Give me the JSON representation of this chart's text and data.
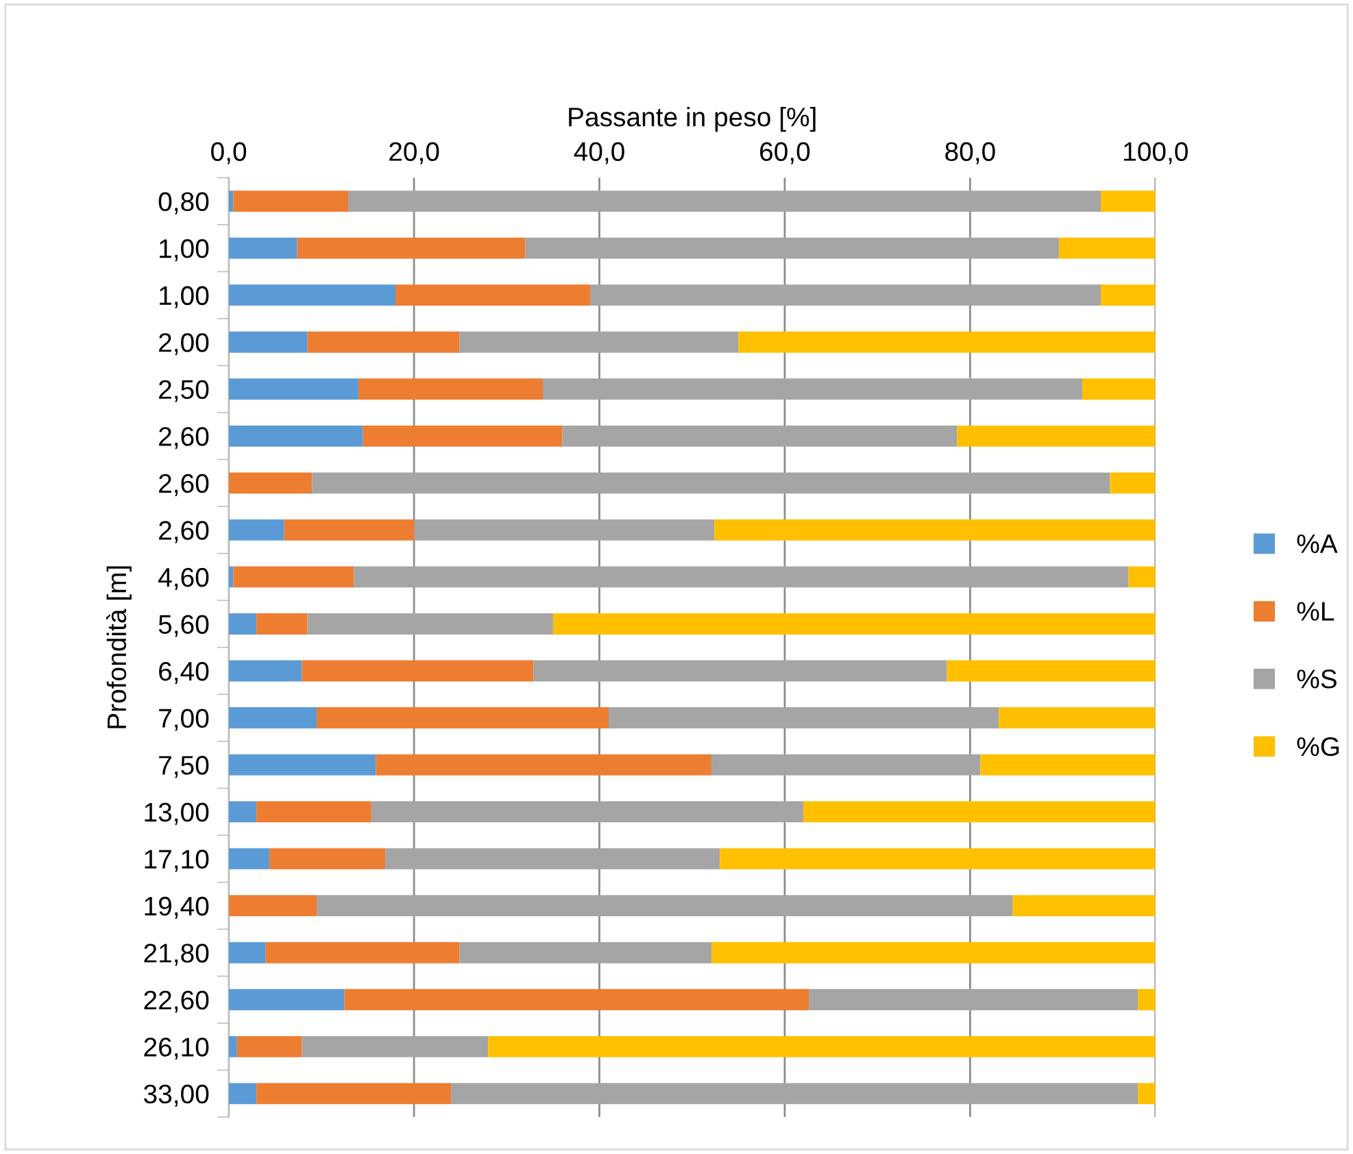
{
  "chart_data": {
    "type": "bar",
    "orientation": "horizontal",
    "stacked": true,
    "xlabel": "Passante in peso [%]",
    "ylabel": "Profondità [m]",
    "categories": [
      "0,80",
      "1,00",
      "1,00",
      "2,00",
      "2,50",
      "2,60",
      "2,60",
      "2,60",
      "4,60",
      "5,60",
      "6,40",
      "7,00",
      "7,50",
      "13,00",
      "17,10",
      "19,40",
      "21,80",
      "22,60",
      "26,10",
      "33,00"
    ],
    "series": [
      {
        "name": "%A",
        "color": "#5b9bd5",
        "values": [
          0.5,
          7.4,
          18.0,
          8.5,
          14.0,
          14.5,
          0,
          6.0,
          0.5,
          3.0,
          7.9,
          9.5,
          15.9,
          3.0,
          4.4,
          0,
          4.0,
          12.5,
          0.9,
          3.0
        ]
      },
      {
        "name": "%L",
        "color": "#ed7d31",
        "values": [
          12.4,
          24.6,
          21.0,
          16.4,
          19.9,
          21.5,
          9.0,
          14.0,
          13.0,
          5.5,
          25.0,
          31.5,
          36.2,
          12.4,
          12.5,
          9.5,
          20.9,
          50.1,
          7.0,
          21.0
        ]
      },
      {
        "name": "%S",
        "color": "#a5a5a5",
        "values": [
          81.2,
          57.6,
          55.1,
          30.1,
          58.2,
          42.6,
          86.1,
          32.4,
          83.6,
          26.5,
          44.6,
          42.1,
          29.0,
          46.6,
          36.1,
          75.1,
          27.2,
          35.5,
          20.1,
          74.1
        ]
      },
      {
        "name": "%G",
        "color": "#ffc000",
        "values": [
          5.9,
          10.4,
          5.9,
          45.0,
          7.9,
          21.4,
          4.9,
          47.6,
          2.9,
          65.0,
          22.5,
          16.9,
          18.9,
          38.0,
          47.0,
          15.4,
          47.9,
          1.9,
          72.0,
          1.9
        ]
      }
    ],
    "xlim": [
      0,
      100
    ],
    "xticks": [
      {
        "value": 0,
        "label": "0,0"
      },
      {
        "value": 20,
        "label": "20,0"
      },
      {
        "value": 40,
        "label": "40,0"
      },
      {
        "value": 60,
        "label": "60,0"
      },
      {
        "value": 80,
        "label": "80,0"
      },
      {
        "value": 100,
        "label": "100,0"
      }
    ],
    "grid": "x",
    "legend": "right"
  }
}
